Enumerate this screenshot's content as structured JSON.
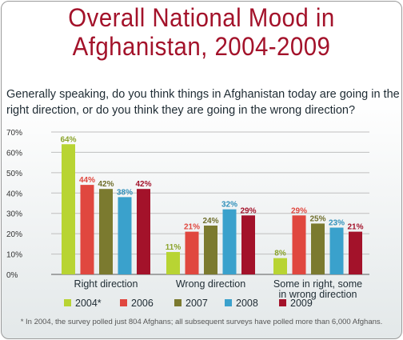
{
  "chart_data": {
    "type": "bar",
    "title_lines": [
      "Overall National Mood in",
      "Afghanistan, 2004-2009"
    ],
    "subtitle": "Generally speaking, do you think things in Afghanistan today are going in the right direction, or do you think they are going in the wrong direction?",
    "categories": [
      {
        "lines": [
          "Right direction"
        ]
      },
      {
        "lines": [
          "Wrong direction"
        ]
      },
      {
        "lines": [
          "Some in right, some",
          "in wrong direction"
        ]
      }
    ],
    "series": [
      {
        "name": "2004*",
        "color": "#b8d433",
        "label_color": "#8aa32a",
        "values": [
          64,
          11,
          8
        ]
      },
      {
        "name": "2006",
        "color": "#e0473f",
        "label_color": "#e0473f",
        "values": [
          44,
          21,
          29
        ]
      },
      {
        "name": "2007",
        "color": "#7b7a2f",
        "label_color": "#6f6e2c",
        "values": [
          42,
          24,
          25
        ]
      },
      {
        "name": "2008",
        "color": "#3aa1cc",
        "label_color": "#2f8fba",
        "values": [
          38,
          32,
          23
        ]
      },
      {
        "name": "2009",
        "color": "#a3122a",
        "label_color": "#a3122a",
        "values": [
          42,
          29,
          21
        ]
      }
    ],
    "value_suffix": "%",
    "y_ticks": [
      "0%",
      "10%",
      "20%",
      "30%",
      "40%",
      "50%",
      "60%",
      "70%"
    ],
    "ylim": [
      0,
      70
    ],
    "grid": true,
    "legend_position": "bottom",
    "footnote": "* In 2004, the survey polled just 804 Afghans; all subsequent surveys have polled more than 6,000 Afghans."
  }
}
